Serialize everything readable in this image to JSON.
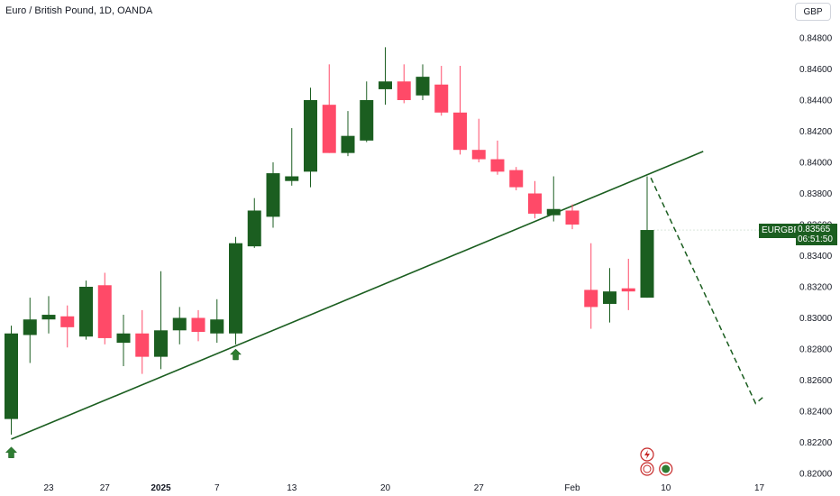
{
  "header": {
    "title": "Euro / British Pound, 1D, OANDA",
    "currency": "GBP"
  },
  "price_label": {
    "symbol": "EURGBP",
    "price": "0.83565",
    "countdown": "06:51:50"
  },
  "colors": {
    "up": "#1b5e20",
    "down": "#ff4a68",
    "trendline": "#1b5e20",
    "grid": "#f0f3fa",
    "axis_text": "#131722"
  },
  "events": {
    "flash_icon": "lightning-icon",
    "flag_icons": [
      "uk-flag-icon",
      "eu-flag-icon"
    ]
  },
  "chart_data": {
    "type": "candlestick",
    "symbol": "EURGBP",
    "timeframe": "1D",
    "y_axis": {
      "ticks": [
        "0.84800",
        "0.84600",
        "0.84400",
        "0.84200",
        "0.84000",
        "0.83800",
        "0.83600",
        "0.83400",
        "0.83200",
        "0.83000",
        "0.82800",
        "0.82600",
        "0.82400",
        "0.82200",
        "0.82000"
      ],
      "range": [
        0.82,
        0.849
      ]
    },
    "x_axis": {
      "ticks": [
        {
          "label": "23",
          "index": 2,
          "bold": false
        },
        {
          "label": "27",
          "index": 5,
          "bold": false
        },
        {
          "label": "2025",
          "index": 8,
          "bold": true
        },
        {
          "label": "7",
          "index": 11,
          "bold": false
        },
        {
          "label": "13",
          "index": 15,
          "bold": false
        },
        {
          "label": "20",
          "index": 20,
          "bold": false
        },
        {
          "label": "27",
          "index": 25,
          "bold": false
        },
        {
          "label": "Feb",
          "index": 30,
          "bold": false
        },
        {
          "label": "10",
          "index": 35,
          "bold": false
        },
        {
          "label": "17",
          "index": 40,
          "bold": false
        }
      ]
    },
    "candles": [
      {
        "i": 0,
        "o": 0.8235,
        "h": 0.8295,
        "l": 0.8225,
        "c": 0.829
      },
      {
        "i": 1,
        "o": 0.8289,
        "h": 0.8313,
        "l": 0.8271,
        "c": 0.8299
      },
      {
        "i": 2,
        "o": 0.8299,
        "h": 0.8314,
        "l": 0.829,
        "c": 0.8302
      },
      {
        "i": 3,
        "o": 0.8301,
        "h": 0.8308,
        "l": 0.8281,
        "c": 0.8294
      },
      {
        "i": 4,
        "o": 0.8288,
        "h": 0.8324,
        "l": 0.8286,
        "c": 0.832
      },
      {
        "i": 5,
        "o": 0.8321,
        "h": 0.8329,
        "l": 0.8283,
        "c": 0.8287
      },
      {
        "i": 6,
        "o": 0.8284,
        "h": 0.8302,
        "l": 0.8269,
        "c": 0.829
      },
      {
        "i": 7,
        "o": 0.829,
        "h": 0.8305,
        "l": 0.8264,
        "c": 0.8275
      },
      {
        "i": 8,
        "o": 0.8275,
        "h": 0.833,
        "l": 0.8267,
        "c": 0.8292
      },
      {
        "i": 9,
        "o": 0.8292,
        "h": 0.8307,
        "l": 0.8283,
        "c": 0.83
      },
      {
        "i": 10,
        "o": 0.83,
        "h": 0.8305,
        "l": 0.8285,
        "c": 0.8291
      },
      {
        "i": 11,
        "o": 0.829,
        "h": 0.8312,
        "l": 0.8284,
        "c": 0.8299
      },
      {
        "i": 12,
        "o": 0.829,
        "h": 0.8352,
        "l": 0.8283,
        "c": 0.8348
      },
      {
        "i": 13,
        "o": 0.8346,
        "h": 0.8377,
        "l": 0.8345,
        "c": 0.8369
      },
      {
        "i": 14,
        "o": 0.8365,
        "h": 0.84,
        "l": 0.8358,
        "c": 0.8393
      },
      {
        "i": 15,
        "o": 0.8388,
        "h": 0.8422,
        "l": 0.8385,
        "c": 0.8391
      },
      {
        "i": 16,
        "o": 0.8394,
        "h": 0.8448,
        "l": 0.8384,
        "c": 0.844
      },
      {
        "i": 17,
        "o": 0.8437,
        "h": 0.8463,
        "l": 0.8406,
        "c": 0.8406
      },
      {
        "i": 18,
        "o": 0.8406,
        "h": 0.8433,
        "l": 0.8404,
        "c": 0.8417
      },
      {
        "i": 19,
        "o": 0.8414,
        "h": 0.8452,
        "l": 0.8413,
        "c": 0.844
      },
      {
        "i": 20,
        "o": 0.8447,
        "h": 0.8474,
        "l": 0.8437,
        "c": 0.8452
      },
      {
        "i": 21,
        "o": 0.8452,
        "h": 0.8463,
        "l": 0.8438,
        "c": 0.844
      },
      {
        "i": 22,
        "o": 0.8443,
        "h": 0.8463,
        "l": 0.844,
        "c": 0.8455
      },
      {
        "i": 23,
        "o": 0.845,
        "h": 0.8462,
        "l": 0.843,
        "c": 0.8432
      },
      {
        "i": 24,
        "o": 0.8432,
        "h": 0.8462,
        "l": 0.8405,
        "c": 0.8408
      },
      {
        "i": 25,
        "o": 0.8408,
        "h": 0.8428,
        "l": 0.84,
        "c": 0.8402
      },
      {
        "i": 26,
        "o": 0.8402,
        "h": 0.8414,
        "l": 0.8392,
        "c": 0.8394
      },
      {
        "i": 27,
        "o": 0.8395,
        "h": 0.8397,
        "l": 0.8382,
        "c": 0.8384
      },
      {
        "i": 28,
        "o": 0.838,
        "h": 0.8388,
        "l": 0.8364,
        "c": 0.8367
      },
      {
        "i": 29,
        "o": 0.8366,
        "h": 0.8391,
        "l": 0.8362,
        "c": 0.837
      },
      {
        "i": 30,
        "o": 0.8369,
        "h": 0.8373,
        "l": 0.8357,
        "c": 0.836
      },
      {
        "i": 31,
        "o": 0.8318,
        "h": 0.8348,
        "l": 0.8293,
        "c": 0.8307
      },
      {
        "i": 32,
        "o": 0.8309,
        "h": 0.8332,
        "l": 0.8297,
        "c": 0.8317
      },
      {
        "i": 33,
        "o": 0.8319,
        "h": 0.8338,
        "l": 0.8305,
        "c": 0.8317
      },
      {
        "i": 34,
        "o": 0.8313,
        "h": 0.8391,
        "l": 0.8313,
        "c": 0.83565
      }
    ],
    "trendline": {
      "from": {
        "i": 0,
        "y": 0.8222
      },
      "to": {
        "i": 37,
        "y": 0.8407
      }
    },
    "projection": [
      {
        "i": 34.2,
        "y": 0.839
      },
      {
        "i": 39.8,
        "y": 0.8245
      },
      {
        "i": 40.3,
        "y": 0.825
      }
    ],
    "up_arrows": [
      {
        "i": 0,
        "y": 0.8217
      },
      {
        "i": 12,
        "y": 0.828
      }
    ]
  }
}
